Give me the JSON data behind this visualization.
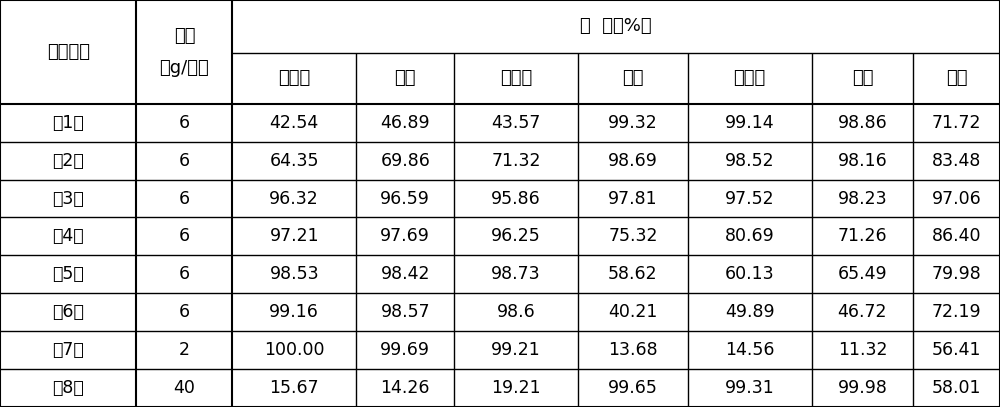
{
  "col_headers_row1": [
    "试验处理",
    "用量",
    "防  效（%）"
  ],
  "col_headers_row2_sub": [
    "播娘蒿",
    "荧菜",
    "猜殃殃",
    "雀麦",
    "看麦娘",
    "硬草",
    "平均"
  ],
  "col_header_yongliangunit": "（g/亩）",
  "rows": [
    [
      "（1）",
      "6",
      "42.54",
      "46.89",
      "43.57",
      "99.32",
      "99.14",
      "98.86",
      "71.72"
    ],
    [
      "（2）",
      "6",
      "64.35",
      "69.86",
      "71.32",
      "98.69",
      "98.52",
      "98.16",
      "83.48"
    ],
    [
      "（3）",
      "6",
      "96.32",
      "96.59",
      "95.86",
      "97.81",
      "97.52",
      "98.23",
      "97.06"
    ],
    [
      "（4）",
      "6",
      "97.21",
      "97.69",
      "96.25",
      "75.32",
      "80.69",
      "71.26",
      "86.40"
    ],
    [
      "（5）",
      "6",
      "98.53",
      "98.42",
      "98.73",
      "58.62",
      "60.13",
      "65.49",
      "79.98"
    ],
    [
      "（6）",
      "6",
      "99.16",
      "98.57",
      "98.6",
      "40.21",
      "49.89",
      "46.72",
      "72.19"
    ],
    [
      "（7）",
      "2",
      "100.00",
      "99.69",
      "99.21",
      "13.68",
      "14.56",
      "11.32",
      "56.41"
    ],
    [
      "（8）",
      "40",
      "15.67",
      "14.26",
      "19.21",
      "99.65",
      "99.31",
      "99.98",
      "58.01"
    ]
  ],
  "bg_color": "#ffffff",
  "line_color": "#000000",
  "text_color": "#000000",
  "fontsize": 12.5,
  "header_fontsize": 13
}
